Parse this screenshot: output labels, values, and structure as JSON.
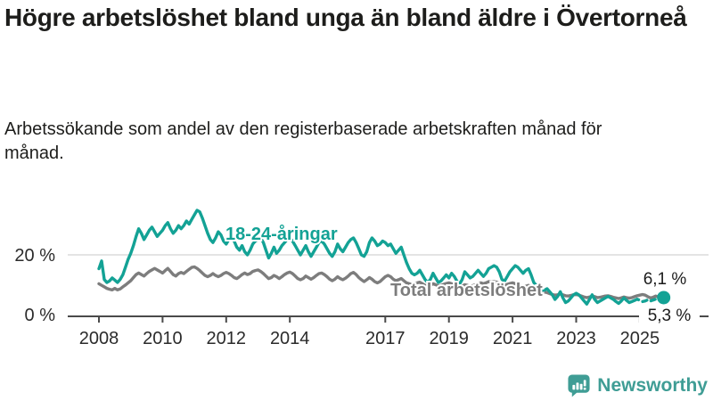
{
  "header": {
    "title": "Högre arbetslöshet bland unga än bland äldre i Övertorneå",
    "subtitle": "Arbetssökande som andel av den registerbaserade arbetskraften månad för månad."
  },
  "chart_data": {
    "type": "line",
    "unit": "%",
    "x_start": {
      "year": 2008,
      "month": 1
    },
    "x_step_months": 1,
    "x_ticks": [
      2008,
      2010,
      2012,
      2014,
      2017,
      2019,
      2021,
      2023,
      2025
    ],
    "ylim": [
      0,
      36
    ],
    "y_gridlines": [
      20
    ],
    "y_axis_labels": {
      "zero": "0 %",
      "twenty": "20 %"
    },
    "grid_color": "#dcdcdc",
    "axis_color": "#4a4a4a",
    "text_color": "#2b2b2b",
    "series": [
      {
        "name": "Total arbetslöshet",
        "color": "#7d7d7d",
        "end_label": "5,3 %",
        "values": [
          10.6,
          10.1,
          9.6,
          9.1,
          8.8,
          8.6,
          9.1,
          8.6,
          8.9,
          9.6,
          10.2,
          10.9,
          11.6,
          12.6,
          13.6,
          14.1,
          13.6,
          13.1,
          13.9,
          14.6,
          15.1,
          15.6,
          15.1,
          14.6,
          14.1,
          14.9,
          15.6,
          14.6,
          13.6,
          13.1,
          13.9,
          14.3,
          13.9,
          14.6,
          15.3,
          15.9,
          16.1,
          15.6,
          14.9,
          14.1,
          13.3,
          12.9,
          13.3,
          13.9,
          13.3,
          12.9,
          13.3,
          13.9,
          14.3,
          13.9,
          13.3,
          12.6,
          12.3,
          12.9,
          13.6,
          14.1,
          13.6,
          13.9,
          14.6,
          14.9,
          15.1,
          14.6,
          13.9,
          13.1,
          12.3,
          12.6,
          13.3,
          12.9,
          12.3,
          12.9,
          13.6,
          14.1,
          14.4,
          13.9,
          13.1,
          12.3,
          11.9,
          12.3,
          13.1,
          12.6,
          12.1,
          12.6,
          13.3,
          13.9,
          14.1,
          13.6,
          12.9,
          12.1,
          11.6,
          12.1,
          12.9,
          12.3,
          11.9,
          12.4,
          13.1,
          13.9,
          14.3,
          13.6,
          12.6,
          11.9,
          11.3,
          11.9,
          12.6,
          12.1,
          11.3,
          10.9,
          11.3,
          12.1,
          12.9,
          13.3,
          12.9,
          12.1,
          11.6,
          11.9,
          12.3,
          11.6,
          10.9,
          10.6,
          10.3,
          10.6,
          10.9,
          11.1,
          10.6,
          10.1,
          9.9,
          10.1,
          10.6,
          10.3,
          9.9,
          10.1,
          10.4,
          10.7,
          10.9,
          10.6,
          10.3,
          9.9,
          9.6,
          9.9,
          10.3,
          10.1,
          9.7,
          10.0,
          10.3,
          10.6,
          10.9,
          10.6,
          10.9,
          11.3,
          11.1,
          11.3,
          11.1,
          10.7,
          10.3,
          10.1,
          10.4,
          10.7,
          10.9,
          10.6,
          10.3,
          9.9,
          9.6,
          9.8,
          10.1,
          9.6,
          9.1,
          8.7,
          8.4,
          8.1,
          7.9,
          7.7,
          7.4,
          7.1,
          6.9,
          7.0,
          7.3,
          7.0,
          6.7,
          6.6,
          6.8,
          7.0,
          7.1,
          6.9,
          6.6,
          6.3,
          6.1,
          6.3,
          6.6,
          6.4,
          6.1,
          6.2,
          6.4,
          6.6,
          6.7,
          6.5,
          6.2,
          6.0,
          5.8,
          6.0,
          6.3,
          6.1,
          5.9,
          6.1,
          6.4,
          6.7,
          6.9,
          7.1,
          6.9,
          6.4,
          6.0,
          6.2,
          6.6,
          6.3,
          5.8,
          5.3
        ]
      },
      {
        "name": "18-24-åringar",
        "color": "#13a295",
        "end_label": "6,1 %",
        "dashed_tail_points": 12,
        "end_dot": true,
        "values": [
          15.5,
          18.0,
          12.0,
          11.0,
          11.5,
          12.5,
          11.8,
          11.0,
          12.0,
          13.5,
          16.0,
          18.5,
          20.5,
          23.0,
          26.0,
          28.5,
          27.0,
          25.0,
          26.5,
          28.0,
          29.0,
          27.5,
          26.0,
          27.0,
          28.0,
          29.5,
          30.5,
          28.5,
          27.0,
          28.0,
          29.5,
          28.5,
          29.5,
          31.0,
          30.0,
          31.5,
          33.0,
          34.5,
          34.0,
          32.0,
          29.5,
          27.0,
          25.0,
          24.0,
          25.5,
          27.5,
          26.5,
          24.5,
          23.5,
          25.0,
          26.0,
          24.5,
          22.5,
          21.5,
          23.0,
          21.0,
          20.0,
          21.5,
          23.5,
          24.5,
          25.0,
          25.5,
          24.0,
          21.5,
          19.0,
          20.5,
          22.5,
          20.5,
          21.5,
          23.0,
          24.0,
          25.0,
          25.5,
          24.5,
          23.0,
          21.5,
          20.0,
          21.5,
          23.0,
          21.0,
          19.5,
          21.0,
          22.5,
          24.0,
          24.5,
          23.5,
          22.0,
          20.5,
          19.5,
          21.0,
          23.5,
          22.0,
          21.0,
          22.5,
          24.0,
          25.0,
          25.5,
          24.0,
          22.0,
          20.0,
          19.5,
          21.0,
          24.0,
          25.5,
          24.5,
          23.0,
          23.5,
          24.5,
          24.0,
          23.0,
          23.5,
          22.0,
          20.5,
          21.5,
          22.5,
          20.0,
          17.5,
          15.5,
          14.0,
          13.5,
          14.0,
          15.0,
          13.5,
          12.0,
          11.0,
          12.0,
          14.0,
          12.5,
          11.0,
          11.5,
          12.5,
          13.5,
          12.5,
          14.0,
          13.0,
          11.5,
          10.5,
          12.0,
          14.5,
          13.5,
          12.5,
          13.0,
          14.0,
          15.0,
          14.0,
          13.0,
          14.0,
          15.5,
          16.0,
          16.5,
          16.0,
          14.5,
          12.0,
          11.5,
          13.0,
          14.5,
          15.5,
          16.5,
          16.0,
          15.0,
          14.0,
          15.0,
          15.5,
          13.5,
          11.0,
          10.0,
          9.0,
          8.5,
          8.5,
          9.0,
          8.0,
          7.0,
          5.5,
          6.5,
          8.0,
          6.0,
          4.5,
          5.0,
          6.0,
          7.0,
          7.5,
          7.0,
          6.0,
          5.0,
          4.0,
          5.5,
          7.0,
          5.5,
          4.5,
          5.0,
          5.5,
          6.0,
          6.5,
          6.0,
          5.5,
          4.8,
          4.2,
          5.0,
          6.0,
          5.2,
          4.5,
          4.8,
          5.2,
          5.6,
          5.2,
          4.8,
          5.0,
          5.4,
          5.0,
          5.3,
          5.6,
          5.4,
          5.7,
          6.1
        ]
      }
    ]
  },
  "footer": {
    "brand": "Newsworthy",
    "brand_color": "#3f9d95",
    "logo_icon": "bar-chart-speech-bubble-icon"
  }
}
